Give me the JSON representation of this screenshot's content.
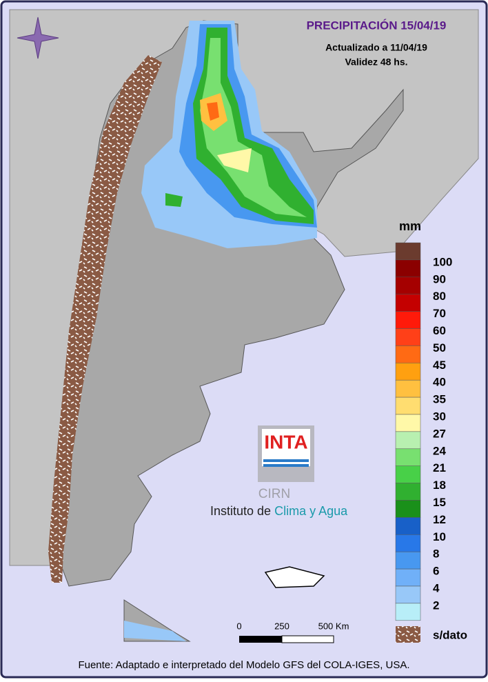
{
  "header": {
    "title": "PRECIPITACIÓN 15/04/19",
    "updated": "Actualizado a 11/04/19",
    "validity": "Validez 48 hs."
  },
  "legend": {
    "unit": "mm",
    "top_color": "#6b3b2e",
    "items": [
      {
        "value": 100,
        "color": "#8b0000"
      },
      {
        "value": 90,
        "color": "#a50000"
      },
      {
        "value": 80,
        "color": "#c40000"
      },
      {
        "value": 70,
        "color": "#ff1a0a"
      },
      {
        "value": 60,
        "color": "#ff4018"
      },
      {
        "value": 50,
        "color": "#ff6a14"
      },
      {
        "value": 45,
        "color": "#ffa010"
      },
      {
        "value": 40,
        "color": "#ffc040"
      },
      {
        "value": 35,
        "color": "#ffdd70"
      },
      {
        "value": 30,
        "color": "#fff8a8"
      },
      {
        "value": 27,
        "color": "#b8f0b0"
      },
      {
        "value": 24,
        "color": "#78e070"
      },
      {
        "value": 21,
        "color": "#48d048"
      },
      {
        "value": 18,
        "color": "#30b030"
      },
      {
        "value": 15,
        "color": "#1a901a"
      },
      {
        "value": 12,
        "color": "#1860c8"
      },
      {
        "value": 10,
        "color": "#2878e8"
      },
      {
        "value": 8,
        "color": "#4898f0"
      },
      {
        "value": 6,
        "color": "#70b0f8"
      },
      {
        "value": 4,
        "color": "#98c8f8"
      },
      {
        "value": 2,
        "color": "#b8eef8"
      }
    ],
    "no_data": "s/dato"
  },
  "scale": {
    "labels": [
      "0",
      "250",
      "500 Km"
    ]
  },
  "logo": {
    "brand": "INTA",
    "center": "CIRN",
    "institute": "Instituto de",
    "institute_highlight": "Clima y Agua"
  },
  "footer": "Fuente: Adaptado e interpretado del Modelo GFS del COLA-IGES, USA."
}
